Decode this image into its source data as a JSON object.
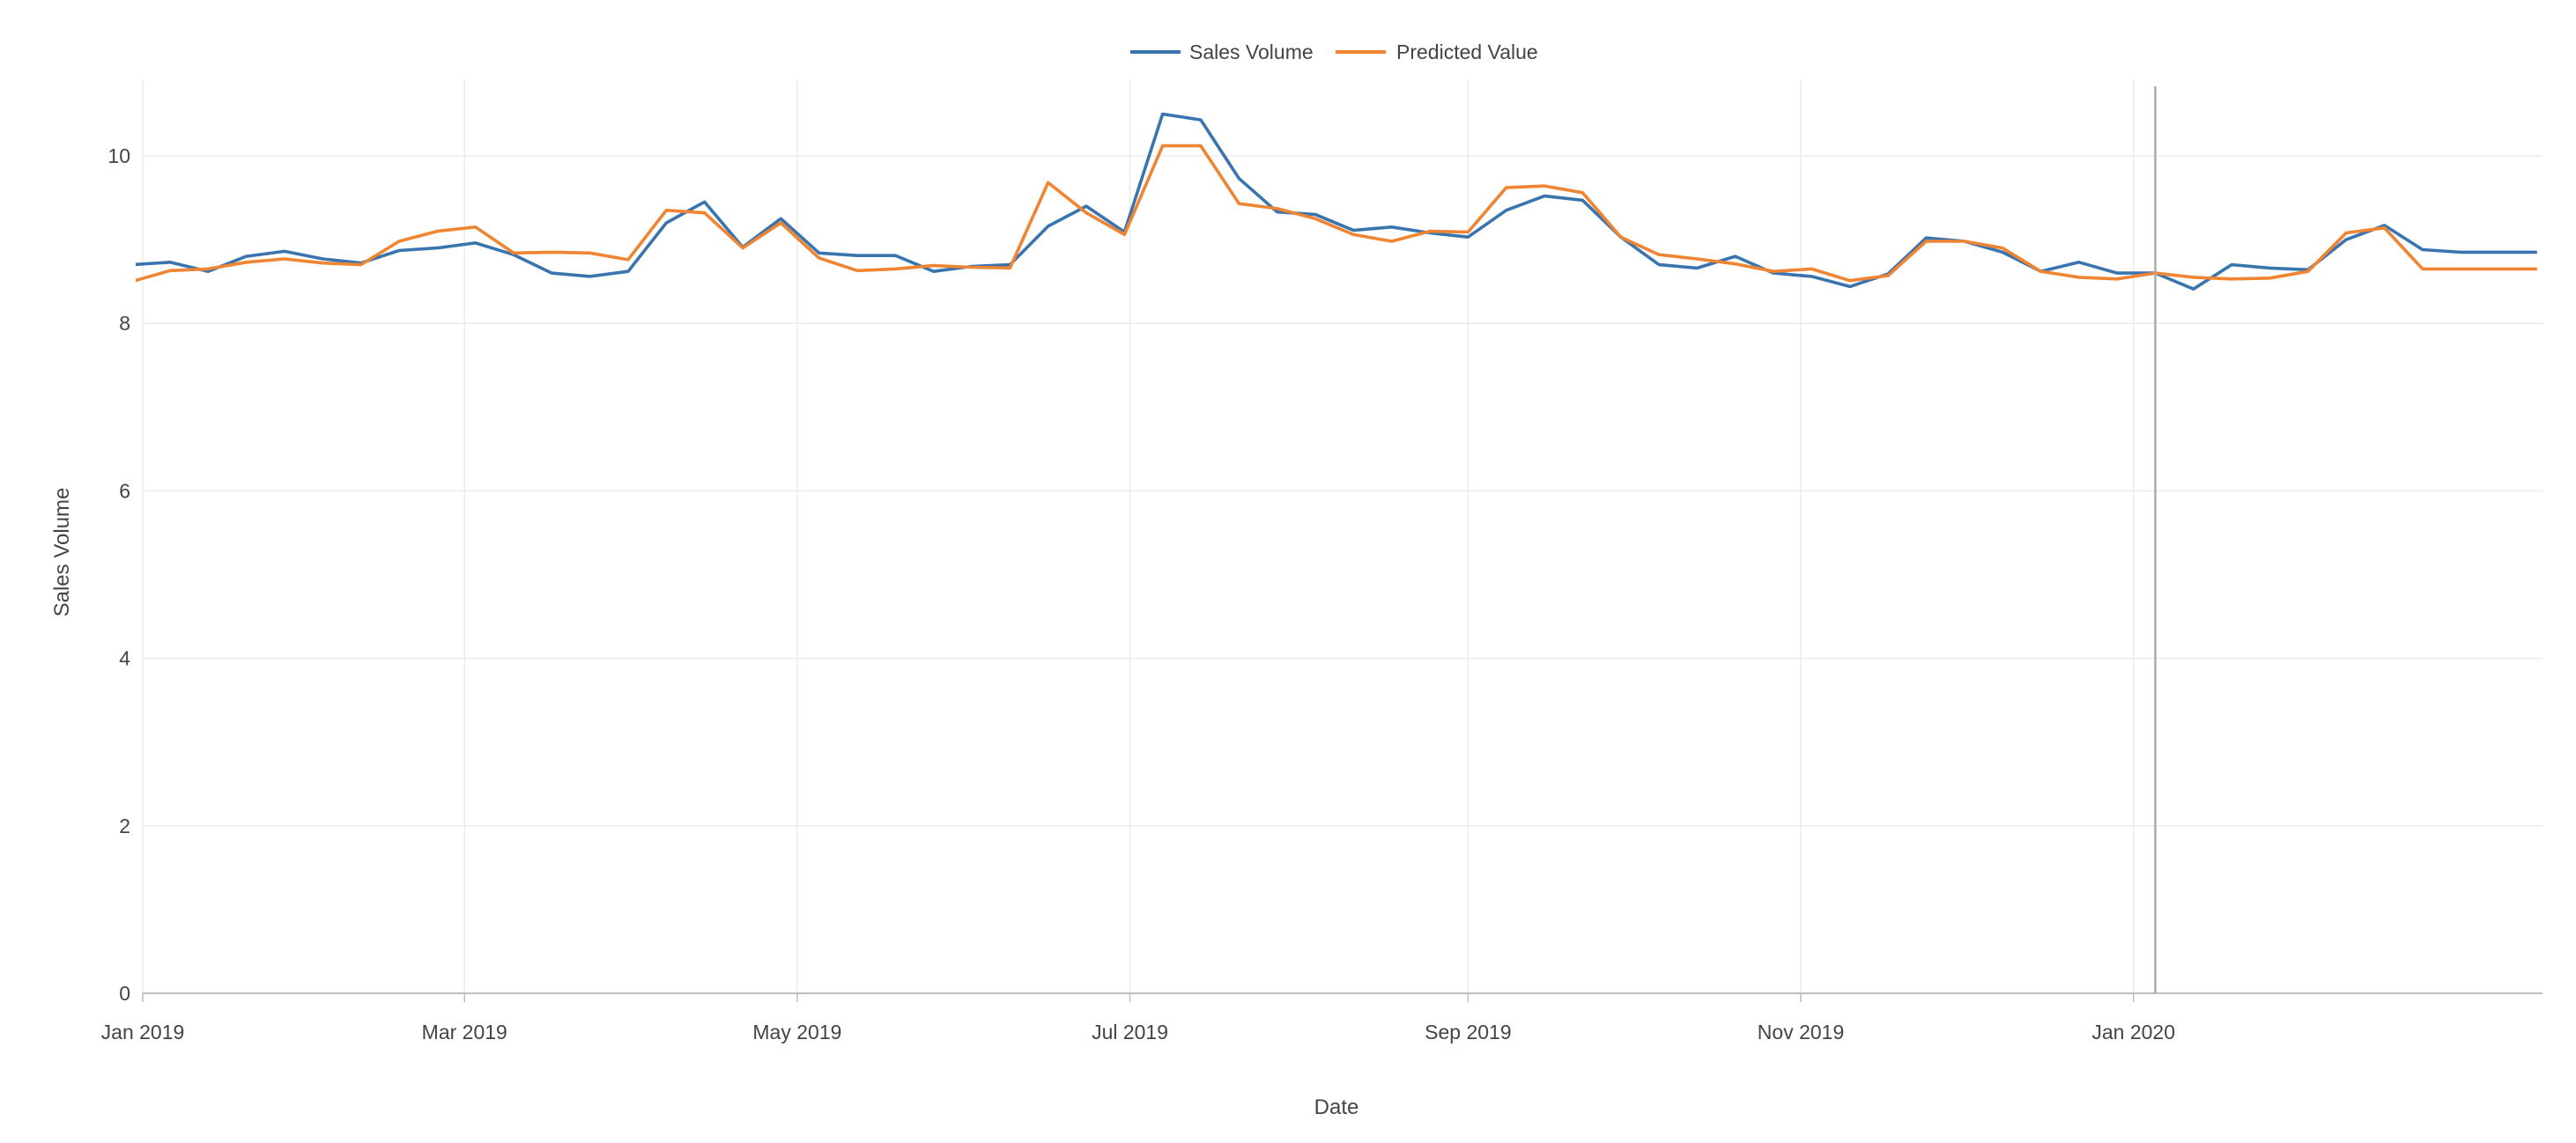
{
  "chart_data": {
    "type": "line",
    "xlabel": "Date",
    "ylabel": "Sales Volume",
    "x_tick_labels": [
      "Jan 2019",
      "Mar 2019",
      "May 2019",
      "Jul 2019",
      "Sep 2019",
      "Nov 2019",
      "Jan 2020"
    ],
    "y_tick_labels": [
      "0",
      "2",
      "4",
      "6",
      "8",
      "10"
    ],
    "x_ticks": [
      "2019-01-01",
      "2019-03-01",
      "2019-05-01",
      "2019-07-01",
      "2019-09-01",
      "2019-11-01",
      "2020-01-01"
    ],
    "y_ticks": [
      0,
      2,
      4,
      6,
      8,
      10
    ],
    "xlim": [
      "2019-01-01",
      "2020-03-16"
    ],
    "ylim": [
      -0.4,
      10.9
    ],
    "grid": true,
    "legend_position": "top-center",
    "vertical_marker": "2020-01-05",
    "x": [
      "2018-12-30",
      "2019-01-06",
      "2019-01-13",
      "2019-01-20",
      "2019-01-27",
      "2019-02-03",
      "2019-02-10",
      "2019-02-17",
      "2019-02-24",
      "2019-03-03",
      "2019-03-10",
      "2019-03-17",
      "2019-03-24",
      "2019-03-31",
      "2019-04-07",
      "2019-04-14",
      "2019-04-21",
      "2019-04-28",
      "2019-05-05",
      "2019-05-12",
      "2019-05-19",
      "2019-05-26",
      "2019-06-02",
      "2019-06-09",
      "2019-06-16",
      "2019-06-23",
      "2019-06-30",
      "2019-07-07",
      "2019-07-14",
      "2019-07-21",
      "2019-07-28",
      "2019-08-04",
      "2019-08-11",
      "2019-08-18",
      "2019-08-25",
      "2019-09-01",
      "2019-09-08",
      "2019-09-15",
      "2019-09-22",
      "2019-09-29",
      "2019-10-06",
      "2019-10-13",
      "2019-10-20",
      "2019-10-27",
      "2019-11-03",
      "2019-11-10",
      "2019-11-17",
      "2019-11-24",
      "2019-12-01",
      "2019-12-08",
      "2019-12-15",
      "2019-12-22",
      "2019-12-29",
      "2020-01-05",
      "2020-01-12",
      "2020-01-19",
      "2020-01-26",
      "2020-02-02",
      "2020-02-09",
      "2020-02-16",
      "2020-02-23",
      "2020-03-01",
      "2020-03-08",
      "2020-03-15"
    ],
    "series": [
      {
        "name": "Sales Volume",
        "color": "#3a74ae",
        "values": [
          8.7,
          8.73,
          8.62,
          8.8,
          8.86,
          8.77,
          8.72,
          8.87,
          8.9,
          8.96,
          8.82,
          8.6,
          8.56,
          8.62,
          9.2,
          9.45,
          8.91,
          9.25,
          8.84,
          8.81,
          8.81,
          8.62,
          8.68,
          8.7,
          9.16,
          9.4,
          9.09,
          10.5,
          10.43,
          9.73,
          9.33,
          9.3,
          9.11,
          9.15,
          9.08,
          9.03,
          9.35,
          9.52,
          9.47,
          9.03,
          8.7,
          8.66,
          8.8,
          8.6,
          8.56,
          8.44,
          8.59,
          9.02,
          8.98,
          8.85,
          8.62,
          8.73,
          8.6,
          8.6,
          8.41,
          8.7,
          8.66,
          8.64,
          9.0,
          9.17,
          8.88,
          8.85,
          8.85,
          8.85
        ]
      },
      {
        "name": "Predicted Value",
        "color": "#ef8532",
        "values": [
          8.5,
          8.63,
          8.65,
          8.73,
          8.77,
          8.72,
          8.7,
          8.98,
          9.1,
          9.15,
          8.84,
          8.85,
          8.84,
          8.76,
          9.35,
          9.32,
          8.9,
          9.2,
          8.78,
          8.63,
          8.65,
          8.69,
          8.67,
          8.66,
          9.68,
          9.32,
          9.06,
          10.12,
          10.12,
          9.43,
          9.37,
          9.25,
          9.06,
          8.98,
          9.1,
          9.09,
          9.62,
          9.64,
          9.56,
          9.03,
          8.82,
          8.77,
          8.71,
          8.62,
          8.65,
          8.51,
          8.57,
          8.98,
          8.98,
          8.9,
          8.62,
          8.55,
          8.53,
          8.6,
          8.55,
          8.53,
          8.54,
          8.62,
          9.08,
          9.14,
          8.65,
          8.65,
          8.65,
          8.65
        ]
      }
    ]
  }
}
